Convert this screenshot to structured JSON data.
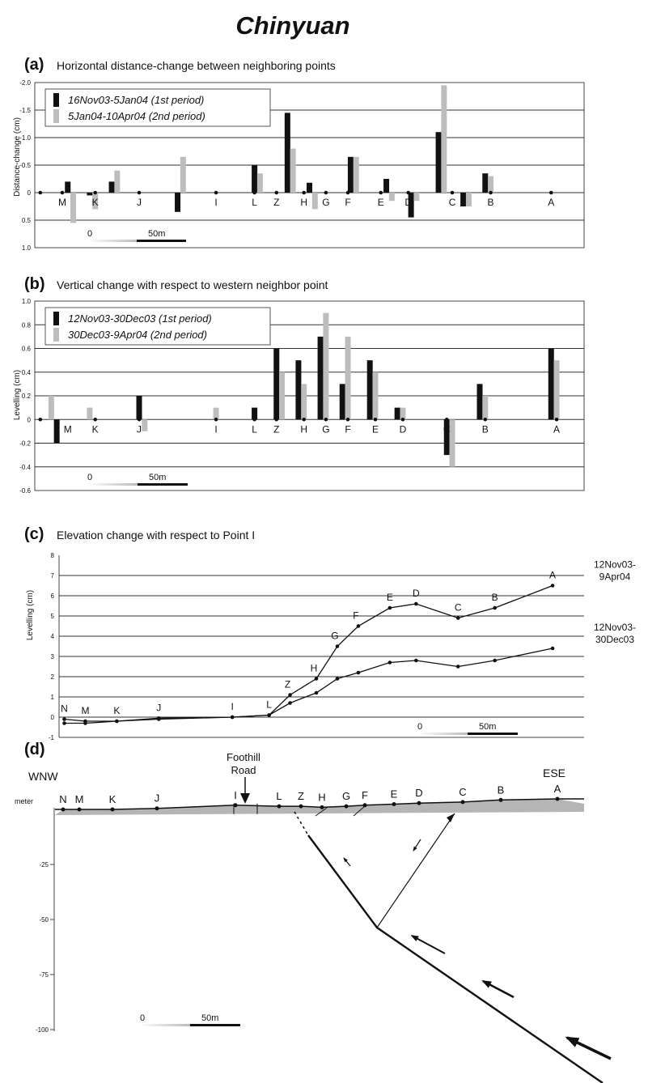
{
  "figure_title": "Chinyuan",
  "chart_data": [
    {
      "panel": "(a)",
      "type": "bar",
      "title": "Horizontal distance-change between neighboring points",
      "ylabel": "Distance-change (cm)",
      "ylim": [
        -2.0,
        1.0
      ],
      "y_inverted": true,
      "yticks": [
        "-2.0",
        "-1.5",
        "-1.0",
        "-0.5",
        "0",
        "0.5",
        "1.0"
      ],
      "grid": true,
      "legend_position": "top-left",
      "series": [
        {
          "name": "16Nov03-5Jan04 (1st period)",
          "color": "#111111",
          "x": [
            6,
            10,
            14,
            26,
            40,
            46,
            50,
            57.5,
            64,
            68.5,
            73.5,
            78,
            82
          ],
          "values": [
            -0.2,
            0.05,
            -0.2,
            0.35,
            -0.5,
            -1.45,
            -0.18,
            -0.65,
            -0.25,
            0.45,
            -1.1,
            0.25,
            -0.35
          ]
        },
        {
          "name": "5Jan04-10Apr04 (2nd period)",
          "color": "#bdbdbd",
          "x": [
            7,
            11,
            15,
            27,
            41,
            47,
            51,
            58.5,
            65,
            69.5,
            74.5,
            79,
            83
          ],
          "values": [
            0.55,
            0.3,
            -0.4,
            -0.65,
            -0.35,
            -0.8,
            0.3,
            -0.65,
            0.15,
            0.15,
            -1.95,
            0.25,
            -0.3
          ]
        }
      ],
      "points": [
        {
          "label": "M",
          "x": 5
        },
        {
          "label": "K",
          "x": 11
        },
        {
          "label": "J",
          "x": 19
        },
        {
          "label": "I",
          "x": 33
        },
        {
          "label": "L",
          "x": 40
        },
        {
          "label": "Z",
          "x": 44
        },
        {
          "label": "H",
          "x": 49
        },
        {
          "label": "G",
          "x": 53
        },
        {
          "label": "F",
          "x": 57
        },
        {
          "label": "E",
          "x": 63
        },
        {
          "label": "D",
          "x": 68
        },
        {
          "label": "C",
          "x": 76
        },
        {
          "label": "B",
          "x": 83
        },
        {
          "label": "A",
          "x": 94
        }
      ],
      "zero_dots_x": [
        1,
        5,
        11,
        19,
        33,
        40,
        44,
        49,
        53,
        57,
        63,
        68,
        76,
        83,
        94
      ],
      "scale_bar": {
        "start": "0",
        "end": "50m"
      }
    },
    {
      "panel": "(b)",
      "type": "bar",
      "title": "Vertical change with respect to western neighbor point",
      "ylabel": "Levelling (cm)",
      "ylim": [
        -0.6,
        1.0
      ],
      "yticks": [
        "1.0",
        "0.8",
        "0.6",
        "0.4",
        "0.2",
        "0",
        "-0.2",
        "-0.4",
        "-0.6"
      ],
      "grid": true,
      "legend_position": "top-left",
      "series": [
        {
          "name": "12Nov03-30Dec03 (1st period)",
          "color": "#111111",
          "x": [
            4,
            19,
            40,
            44,
            48,
            52,
            56,
            61,
            66,
            75,
            81,
            94
          ],
          "values": [
            -0.2,
            0.2,
            0.1,
            0.6,
            0.5,
            0.7,
            0.3,
            0.5,
            0.1,
            -0.3,
            0.3,
            0.6
          ]
        },
        {
          "name": "30Dec03-9Apr04 (2nd period)",
          "color": "#bdbdbd",
          "x": [
            3,
            10,
            20,
            33,
            45,
            49,
            53,
            57,
            62,
            67,
            76,
            82,
            95
          ],
          "values": [
            0.2,
            0.1,
            -0.1,
            0.1,
            0.4,
            0.3,
            0.9,
            0.7,
            0.4,
            0.1,
            -0.4,
            0.2,
            0.5
          ]
        }
      ],
      "points": [
        {
          "label": "M",
          "x": 6
        },
        {
          "label": "K",
          "x": 11
        },
        {
          "label": "J",
          "x": 19
        },
        {
          "label": "I",
          "x": 33
        },
        {
          "label": "L",
          "x": 40
        },
        {
          "label": "Z",
          "x": 44
        },
        {
          "label": "H",
          "x": 49
        },
        {
          "label": "G",
          "x": 53
        },
        {
          "label": "F",
          "x": 57
        },
        {
          "label": "E",
          "x": 62
        },
        {
          "label": "D",
          "x": 67
        },
        {
          "label": "C",
          "x": 75
        },
        {
          "label": "B",
          "x": 82
        },
        {
          "label": "A",
          "x": 95
        }
      ],
      "zero_dots_x": [
        1,
        11,
        19,
        33,
        40,
        44,
        49,
        53,
        57,
        62,
        67,
        75,
        82,
        95
      ],
      "scale_bar": {
        "start": "0",
        "end": "50m"
      }
    },
    {
      "panel": "(c)",
      "type": "line",
      "title": "Elevation change with respect to Point I",
      "ylabel": "Levelling (cm)",
      "ylim": [
        -1,
        8
      ],
      "yticks": [
        "8",
        "7",
        "6",
        "5",
        "4",
        "3",
        "2",
        "1",
        "0",
        "-1"
      ],
      "grid": true,
      "series": [
        {
          "name": "12Nov03-9Apr04",
          "x": [
            1,
            5,
            11,
            19,
            33,
            40,
            44,
            49,
            53,
            57,
            63,
            68,
            76,
            83,
            94
          ],
          "values": [
            -0.1,
            -0.2,
            -0.2,
            -0.05,
            0,
            0.1,
            1.1,
            1.9,
            3.5,
            4.5,
            5.4,
            5.6,
            4.9,
            5.4,
            6.5
          ]
        },
        {
          "name": "12Nov03-30Dec03",
          "x": [
            1,
            5,
            11,
            19,
            33,
            40,
            44,
            49,
            53,
            57,
            63,
            68,
            76,
            83,
            94
          ],
          "values": [
            -0.3,
            -0.3,
            -0.2,
            -0.1,
            0,
            0.1,
            0.7,
            1.2,
            1.9,
            2.2,
            2.7,
            2.8,
            2.5,
            2.8,
            3.4
          ]
        }
      ],
      "point_labels": [
        "N",
        "M",
        "K",
        "J",
        "I",
        "L",
        "Z",
        "H",
        "G",
        "F",
        "E",
        "D",
        "C",
        "B",
        "A"
      ],
      "scale_bar": {
        "start": "0",
        "end": "50m"
      }
    }
  ],
  "cross_section": {
    "panel": "(d)",
    "left_label": "WNW",
    "right_label": "ESE",
    "road_label_line1": "Foothill",
    "road_label_line2": "Road",
    "unit_label": "meter",
    "yticks": [
      "-25",
      "-50",
      "-75",
      "-100"
    ],
    "depth_values": [
      -25,
      -50,
      -75,
      -100
    ],
    "points": [
      {
        "label": "N",
        "elevation": 0
      },
      {
        "label": "M",
        "elevation": 0
      },
      {
        "label": "K",
        "elevation": 0
      },
      {
        "label": "J",
        "elevation": 1
      },
      {
        "label": "I",
        "elevation": 4
      },
      {
        "label": "L",
        "elevation": 3
      },
      {
        "label": "Z",
        "elevation": 3
      },
      {
        "label": "H",
        "elevation": 2
      },
      {
        "label": "G",
        "elevation": 3
      },
      {
        "label": "F",
        "elevation": 4
      },
      {
        "label": "E",
        "elevation": 5
      },
      {
        "label": "D",
        "elevation": 6
      },
      {
        "label": "C",
        "elevation": 7
      },
      {
        "label": "B",
        "elevation": 9
      },
      {
        "label": "A",
        "elevation": 10
      }
    ],
    "scale_bar": {
      "start": "0",
      "end": "50m"
    }
  }
}
